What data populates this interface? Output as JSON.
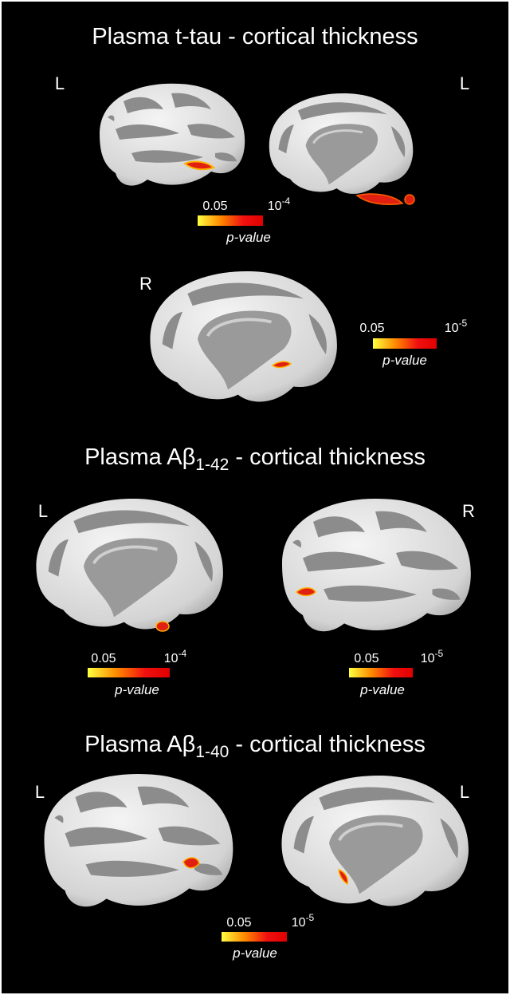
{
  "sections": [
    {
      "title": {
        "text": "Plasma t-tau - cortical thickness"
      },
      "panels": [
        {
          "hemisphere": "L"
        },
        {
          "hemisphere": "L"
        },
        {
          "hemisphere": "R"
        }
      ],
      "colorbars": [
        {
          "min": "0.05",
          "max_base": "10",
          "max_exp": "-4",
          "label": "p-value"
        },
        {
          "min": "0.05",
          "max_base": "10",
          "max_exp": "-5",
          "label": "p-value"
        }
      ]
    },
    {
      "title": {
        "text": "Plasma Aβ",
        "sub": "1-42",
        "rest": " - cortical thickness"
      },
      "panels": [
        {
          "hemisphere": "L"
        },
        {
          "hemisphere": "R"
        }
      ],
      "colorbars": [
        {
          "min": "0.05",
          "max_base": "10",
          "max_exp": "-4",
          "label": "p-value"
        },
        {
          "min": "0.05",
          "max_base": "10",
          "max_exp": "-5",
          "label": "p-value"
        }
      ]
    },
    {
      "title": {
        "text": "Plasma Aβ",
        "sub": "1-40",
        "rest": " - cortical thickness"
      },
      "panels": [
        {
          "hemisphere": "L"
        },
        {
          "hemisphere": "L"
        }
      ],
      "colorbars": [
        {
          "min": "0.05",
          "max_base": "10",
          "max_exp": "-5",
          "label": "p-value"
        }
      ]
    }
  ]
}
